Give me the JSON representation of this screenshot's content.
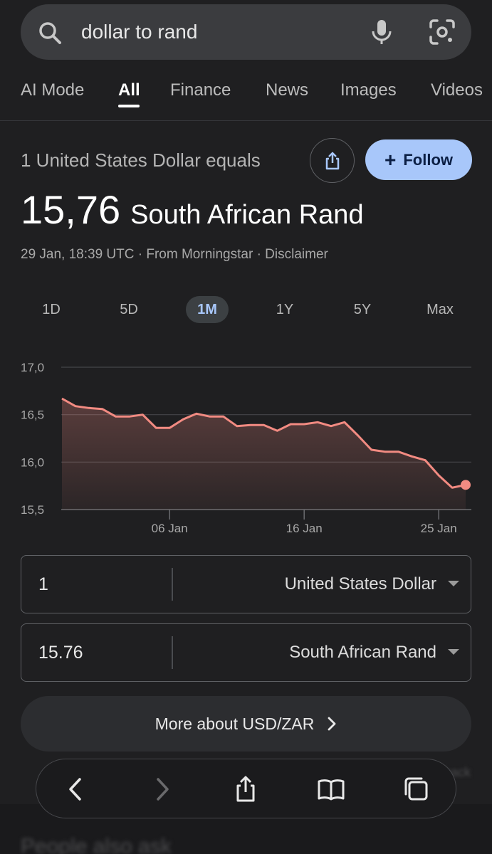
{
  "search": {
    "query": "dollar to rand"
  },
  "tabs": [
    {
      "label": "AI Mode",
      "active": false
    },
    {
      "label": "All",
      "active": true
    },
    {
      "label": "Finance",
      "active": false
    },
    {
      "label": "News",
      "active": false
    },
    {
      "label": "Images",
      "active": false
    },
    {
      "label": "Videos",
      "active": false
    }
  ],
  "header": {
    "equals_text": "1 United States Dollar equals",
    "follow_label": "Follow",
    "rate_value": "15,76",
    "rate_currency": "South African Rand",
    "meta": "29 Jan, 18:39 UTC · From Morningstar · Disclaimer"
  },
  "ranges": [
    {
      "label": "1D",
      "active": false
    },
    {
      "label": "5D",
      "active": false
    },
    {
      "label": "1M",
      "active": true
    },
    {
      "label": "1Y",
      "active": false
    },
    {
      "label": "5Y",
      "active": false
    },
    {
      "label": "Max",
      "active": false
    }
  ],
  "chart_data": {
    "type": "area",
    "series": [
      {
        "values": [
          16.67,
          16.59,
          16.57,
          16.56,
          16.48,
          16.48,
          16.5,
          16.36,
          16.36,
          16.45,
          16.51,
          16.48,
          16.48,
          16.38,
          16.39,
          16.39,
          16.33,
          16.4,
          16.4,
          16.42,
          16.38,
          16.42,
          16.28,
          16.13,
          16.11,
          16.11,
          16.06,
          16.02,
          15.86,
          15.73,
          15.76
        ]
      }
    ],
    "x_tick_labels": [
      "06 Jan",
      "16 Jan",
      "25 Jan"
    ],
    "x_tick_index": [
      8,
      18,
      28
    ],
    "y_tick_labels": [
      "17,0",
      "16,5",
      "16,0",
      "15,5"
    ],
    "y_ticks": [
      17.0,
      16.5,
      16.0,
      15.5
    ],
    "ylim": [
      15.5,
      17.0
    ],
    "grid": true,
    "line_color": "#f28b82"
  },
  "converter": {
    "from_value": "1",
    "from_unit": "United States Dollar",
    "to_value": "15.76",
    "to_unit": "South African Rand"
  },
  "more_label": "More about USD/ZAR",
  "background": {
    "people_also_ask": "People also ask",
    "feedback": "Feedback"
  }
}
